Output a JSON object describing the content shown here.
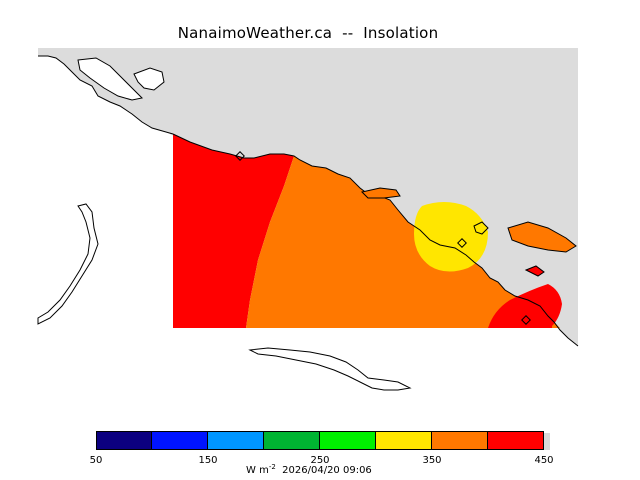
{
  "title": "NanaimoWeather.ca  --  Insolation",
  "colorbar": {
    "colors": [
      "#0c0080",
      "#0014ff",
      "#0096ff",
      "#00b432",
      "#00f000",
      "#ffe600",
      "#ff7800",
      "#ff0000"
    ],
    "tick_labels": [
      "50",
      "150",
      "250",
      "350",
      "450"
    ]
  },
  "caption": {
    "unit_prefix": "W m",
    "unit_exponent": "-2",
    "timestamp": "2026/04/20 09:06"
  },
  "map_colors": {
    "land": "#dcdcdc",
    "water": "#ffffff",
    "outline": "#000000",
    "zone_red": "#ff0000",
    "zone_orange": "#ff7800",
    "zone_yellow": "#ffe600"
  }
}
